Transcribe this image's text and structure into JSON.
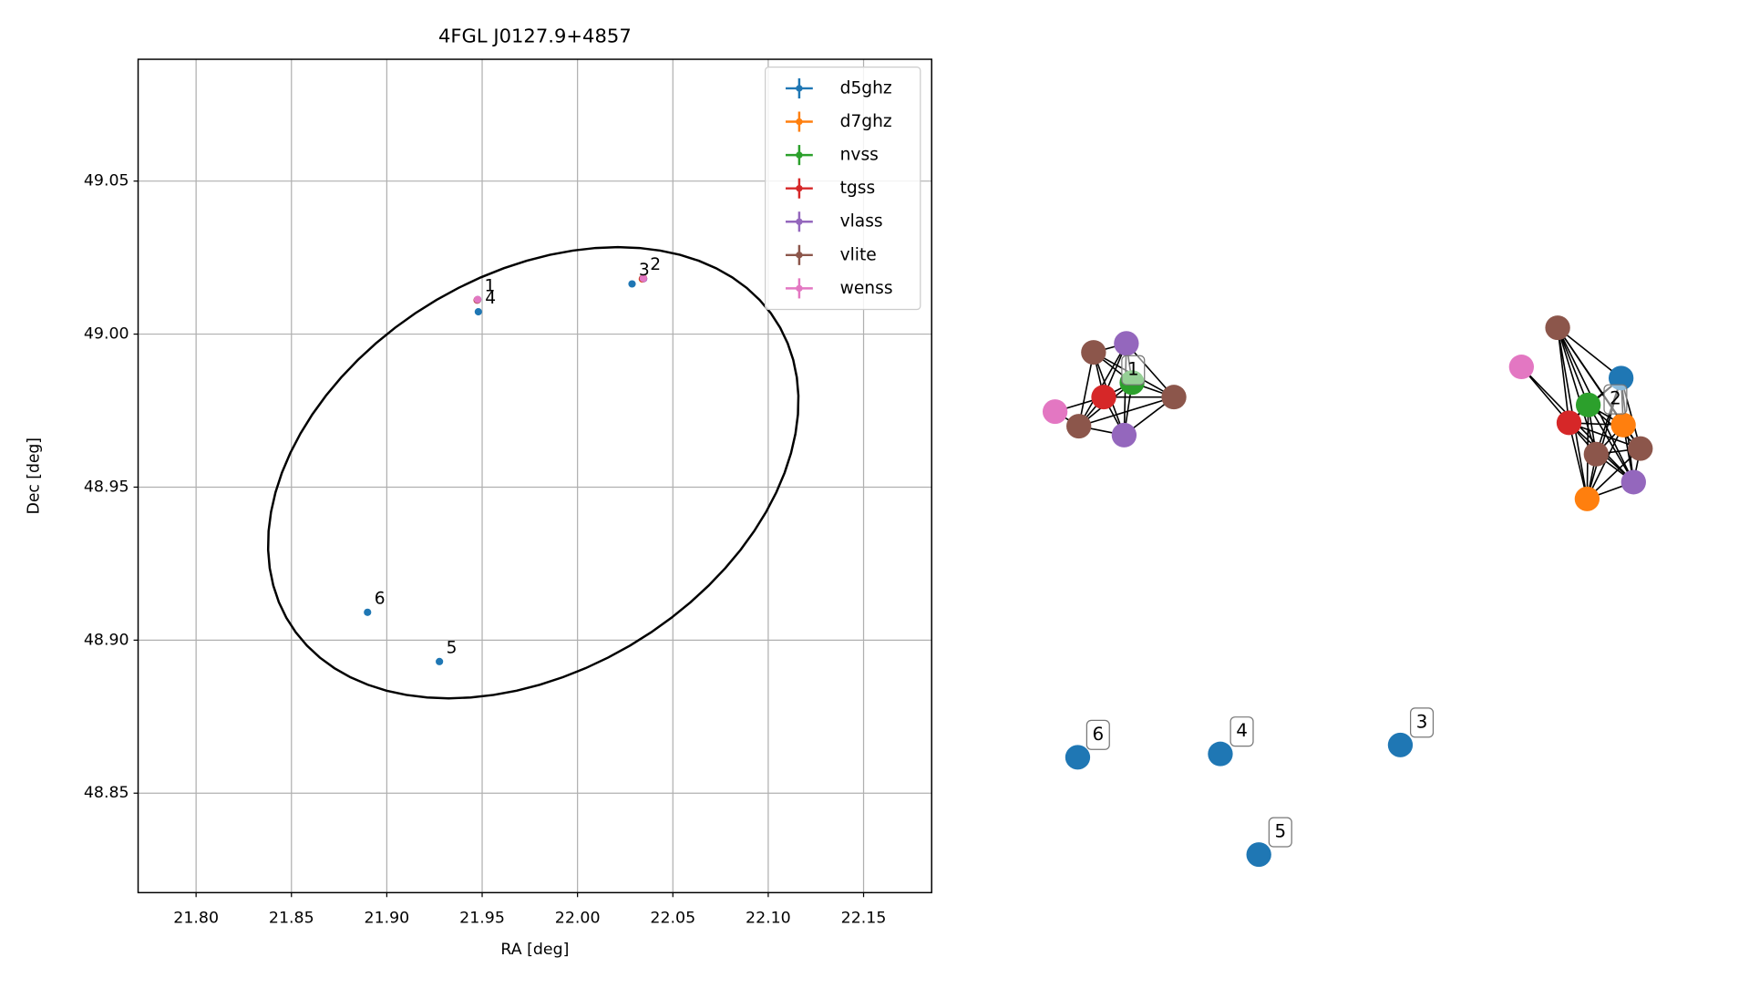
{
  "chart_data": [
    {
      "type": "scatter",
      "title": "4FGL J0127.9+4857",
      "x_label": "RA [deg]",
      "y_label": "Dec [deg]",
      "xlim": [
        21.7696,
        22.1857
      ],
      "ylim": [
        48.8175,
        49.0898
      ],
      "xticks": [
        {
          "value": 21.8,
          "label": "21.80"
        },
        21.85,
        {
          "value": 21.9,
          "label": "21.90"
        },
        21.95,
        {
          "value": 22.0,
          "label": "22.00"
        },
        22.05,
        {
          "value": 22.1,
          "label": "22.10"
        },
        22.15
      ],
      "yticks": [
        48.85,
        {
          "value": 48.9,
          "label": "48.90"
        },
        48.95,
        {
          "value": 49.0,
          "label": "49.00"
        },
        49.05
      ],
      "grid": true,
      "legend": "upper right",
      "series": [
        {
          "name": "d5ghz",
          "color": "#1f77b4",
          "x": [
            21.948,
            22.0286,
            21.9276,
            21.8899
          ],
          "y": [
            49.0073,
            49.0164,
            48.893,
            48.9091
          ]
        },
        {
          "name": "d7ghz",
          "color": "#ff7f0e",
          "x": [
            22.034,
            22.0346
          ],
          "y": [
            49.018,
            49.0183
          ]
        },
        {
          "name": "nvss",
          "color": "#2ca02c",
          "x": [
            21.9476,
            22.0343
          ],
          "y": [
            49.0112,
            49.0182
          ]
        },
        {
          "name": "tgss",
          "color": "#d62728",
          "x": [
            21.9474,
            22.0341
          ],
          "y": [
            49.0111,
            49.0181
          ]
        },
        {
          "name": "vlass",
          "color": "#9467bd",
          "x": [
            21.9477,
            22.0347
          ],
          "y": [
            49.0113,
            49.0181
          ]
        },
        {
          "name": "vlite",
          "color": "#8c564b",
          "x": [
            21.9475,
            22.0344
          ],
          "y": [
            49.0112,
            49.0182
          ]
        },
        {
          "name": "wenss",
          "color": "#e377c2",
          "x": [
            21.9476,
            22.0345
          ],
          "y": [
            49.0113,
            49.0182
          ]
        }
      ],
      "ellipse": {
        "center": [
          21.9768,
          48.9547
        ],
        "u": [
          0.1375,
          0.0128
        ],
        "v": [
          0.0208,
          0.0726
        ]
      },
      "annotations": [
        {
          "text": "1",
          "x": 21.9476,
          "y": 49.0113
        },
        {
          "text": "2",
          "x": 22.0345,
          "y": 49.0182
        },
        {
          "text": "3",
          "x": 22.0286,
          "y": 49.0164
        },
        {
          "text": "4",
          "x": 21.948,
          "y": 49.0073
        },
        {
          "text": "5",
          "x": 21.9276,
          "y": 48.893
        },
        {
          "text": "6",
          "x": 21.8899,
          "y": 48.9091
        }
      ]
    },
    {
      "type": "graph",
      "node_colors": [
        "#9467bd",
        "#8c564b",
        "#2ca02c",
        "#8c564b",
        "#d62728",
        "#e377c2",
        "#8c564b",
        "#9467bd",
        "#8c564b",
        "#e377c2",
        "#1f77b4",
        "#2ca02c",
        "#ff7f0e",
        "#d62728",
        "#8c564b",
        "#8c564b",
        "#9467bd",
        "#ff7f0e",
        "#1f77b4",
        "#1f77b4",
        "#1f77b4",
        "#1f77b4"
      ],
      "node_labels": [
        "1",
        "2",
        "6",
        "4",
        "3",
        "5"
      ]
    }
  ]
}
